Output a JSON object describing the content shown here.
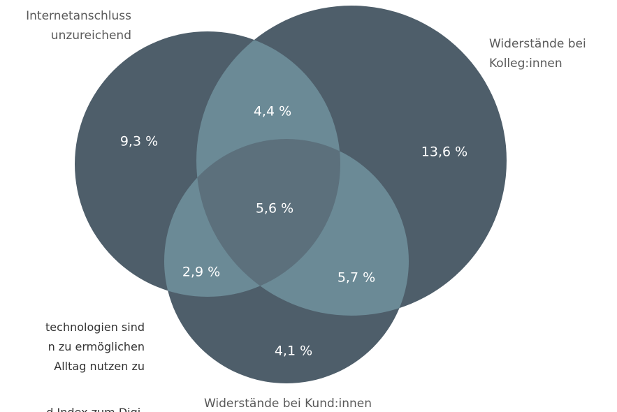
{
  "sets": [
    {
      "label_lines": [
        "Internetanschluss",
        "unzureichend"
      ]
    },
    {
      "label_lines": [
        "Widerstände bei",
        "Kolleg:innen"
      ]
    },
    {
      "label_lines": [
        "Widerstände bei Kund:innen"
      ]
    }
  ],
  "regions": [
    {
      "label": "9,3 %"
    },
    {
      "label": "4,4 %"
    },
    {
      "label": "13,6 %"
    },
    {
      "label": "5,6 %"
    },
    {
      "label": "2,9 %"
    },
    {
      "label": "5,7 %"
    },
    {
      "label": "4,1 %"
    }
  ],
  "text_fragment": [
    "technologien sind",
    "n zu ermöglichen",
    "Alltag nutzen zu",
    "d Index zum Digi-"
  ]
}
